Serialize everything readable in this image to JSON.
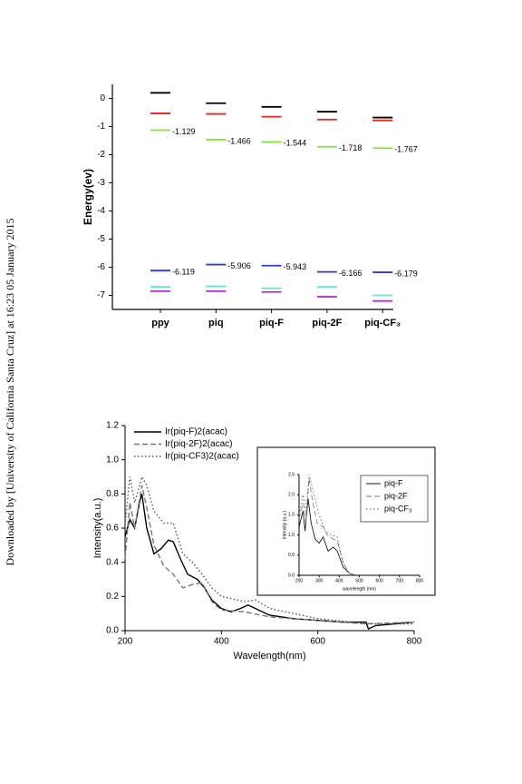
{
  "side_note": "Downloaded by [University of California Santa Cruz] at 16:23 05 January 2015",
  "chart_data": [
    {
      "type": "levels",
      "y_label": "Energy(ev)",
      "categories": [
        "ppy",
        "piq",
        "piq-F",
        "piq-2F",
        "piq-CF₃"
      ],
      "ylim": [
        -7.5,
        0.5
      ],
      "yticks": [
        0,
        -1,
        -2,
        -3,
        -4,
        -5,
        -6,
        -7
      ],
      "series": [
        {
          "color": "#000000",
          "values": [
            0.2,
            -0.17,
            -0.3,
            -0.47,
            -0.68
          ]
        },
        {
          "color": "#e8231e",
          "values": [
            -0.53,
            -0.55,
            -0.65,
            -0.75,
            -0.78
          ]
        },
        {
          "color": "#7ee83a",
          "values": [
            -1.129,
            -1.466,
            -1.544,
            -1.718,
            -1.767
          ],
          "labeled": true
        },
        {
          "color": "#2a3ee0",
          "values": [
            -6.119,
            -5.906,
            -5.943,
            -6.166,
            -6.179
          ],
          "labeled": true
        },
        {
          "color": "#57e8d8",
          "values": [
            -6.7,
            -6.68,
            -6.75,
            -6.7,
            -7.0
          ]
        },
        {
          "color": "#b42ad8",
          "values": [
            -6.85,
            -6.85,
            -6.88,
            -7.05,
            -7.2
          ]
        }
      ]
    },
    {
      "type": "line",
      "x_label": "Wavelength(nm)",
      "y_label": "Intensity(a.u.)",
      "xlim": [
        200,
        800
      ],
      "xticks": [
        200,
        400,
        600,
        800
      ],
      "ylim": [
        0,
        1.2
      ],
      "yticks": [
        {
          "value": 0,
          "label": "0.0"
        },
        {
          "value": 0.2,
          "label": "0.2"
        },
        {
          "value": 0.4,
          "label": "0.4"
        },
        {
          "value": 0.6,
          "label": "0.6"
        },
        {
          "value": 0.8,
          "label": "0.8"
        },
        {
          "value": 1,
          "label": "1.0"
        },
        {
          "value": 1.2,
          "label": "1.2"
        }
      ],
      "series": [
        {
          "name": "Ir(piq-F)2(acac)",
          "color": "#000000",
          "dash": "solid",
          "x": [
            200,
            210,
            220,
            230,
            235,
            245,
            260,
            275,
            290,
            300,
            315,
            330,
            350,
            365,
            380,
            400,
            420,
            440,
            455,
            470,
            500,
            550,
            600,
            650,
            700,
            705,
            720,
            760,
            800
          ],
          "values": [
            0.55,
            0.65,
            0.6,
            0.75,
            0.8,
            0.6,
            0.45,
            0.48,
            0.53,
            0.52,
            0.42,
            0.33,
            0.3,
            0.25,
            0.18,
            0.13,
            0.11,
            0.13,
            0.15,
            0.13,
            0.09,
            0.07,
            0.06,
            0.05,
            0.05,
            0.01,
            0.03,
            0.04,
            0.05
          ]
        },
        {
          "name": "Ir(piq-2F)2(acac)",
          "color": "#777777",
          "dash": "dash",
          "x": [
            200,
            210,
            220,
            235,
            245,
            260,
            280,
            300,
            320,
            340,
            360,
            380,
            400,
            450,
            500,
            600,
            700,
            800
          ],
          "values": [
            0.42,
            0.75,
            0.6,
            0.85,
            0.72,
            0.5,
            0.38,
            0.33,
            0.25,
            0.27,
            0.28,
            0.17,
            0.12,
            0.11,
            0.08,
            0.06,
            0.04,
            0.05
          ]
        },
        {
          "name": "Ir(piq-CF3)2(acac)",
          "color": "#555555",
          "dash": "dot",
          "x": [
            200,
            210,
            220,
            235,
            245,
            260,
            280,
            300,
            320,
            340,
            360,
            380,
            400,
            450,
            470,
            500,
            550,
            600,
            700,
            800
          ],
          "values": [
            0.62,
            0.9,
            0.75,
            0.9,
            0.85,
            0.7,
            0.63,
            0.63,
            0.45,
            0.4,
            0.33,
            0.25,
            0.2,
            0.17,
            0.18,
            0.13,
            0.1,
            0.07,
            0.04,
            0.04
          ]
        }
      ]
    },
    {
      "type": "line",
      "x_label": "wavelength (nm)",
      "y_label": "Intensity (a.u.)",
      "xlim": [
        200,
        800
      ],
      "xticks": [
        200,
        300,
        400,
        500,
        600,
        700,
        800
      ],
      "ylim": [
        0,
        2.5
      ],
      "yticks": [
        {
          "value": 0,
          "label": "0.0"
        },
        0.5,
        {
          "value": 1,
          "label": "1.0"
        },
        1.5,
        {
          "value": 2,
          "label": "2.0"
        },
        2.5
      ],
      "series": [
        {
          "name": "piq-F",
          "color": "#000000",
          "dash": "solid",
          "x": [
            200,
            220,
            230,
            245,
            260,
            280,
            300,
            320,
            345,
            370,
            390,
            420,
            450,
            480
          ],
          "values": [
            1.2,
            1.6,
            1.1,
            1.9,
            1.3,
            0.9,
            0.8,
            0.95,
            0.6,
            0.7,
            0.6,
            0.2,
            0.05,
            0
          ]
        },
        {
          "name": "piq-2F",
          "color": "#777777",
          "dash": "dash",
          "x": [
            200,
            220,
            235,
            250,
            265,
            290,
            320,
            340,
            370,
            390,
            420,
            450,
            480
          ],
          "values": [
            1.4,
            1.8,
            1.4,
            2.4,
            1.9,
            1.3,
            1.2,
            1.0,
            0.9,
            0.85,
            0.3,
            0.05,
            0
          ]
        },
        {
          "name": "piq-CF₃",
          "color": "#555555",
          "dash": "dot",
          "x": [
            200,
            220,
            235,
            250,
            270,
            300,
            330,
            360,
            390,
            420,
            450,
            480
          ],
          "values": [
            1.5,
            2.0,
            1.6,
            2.5,
            2.1,
            1.5,
            1.1,
            1.0,
            0.95,
            0.3,
            0.05,
            0
          ]
        }
      ]
    }
  ]
}
